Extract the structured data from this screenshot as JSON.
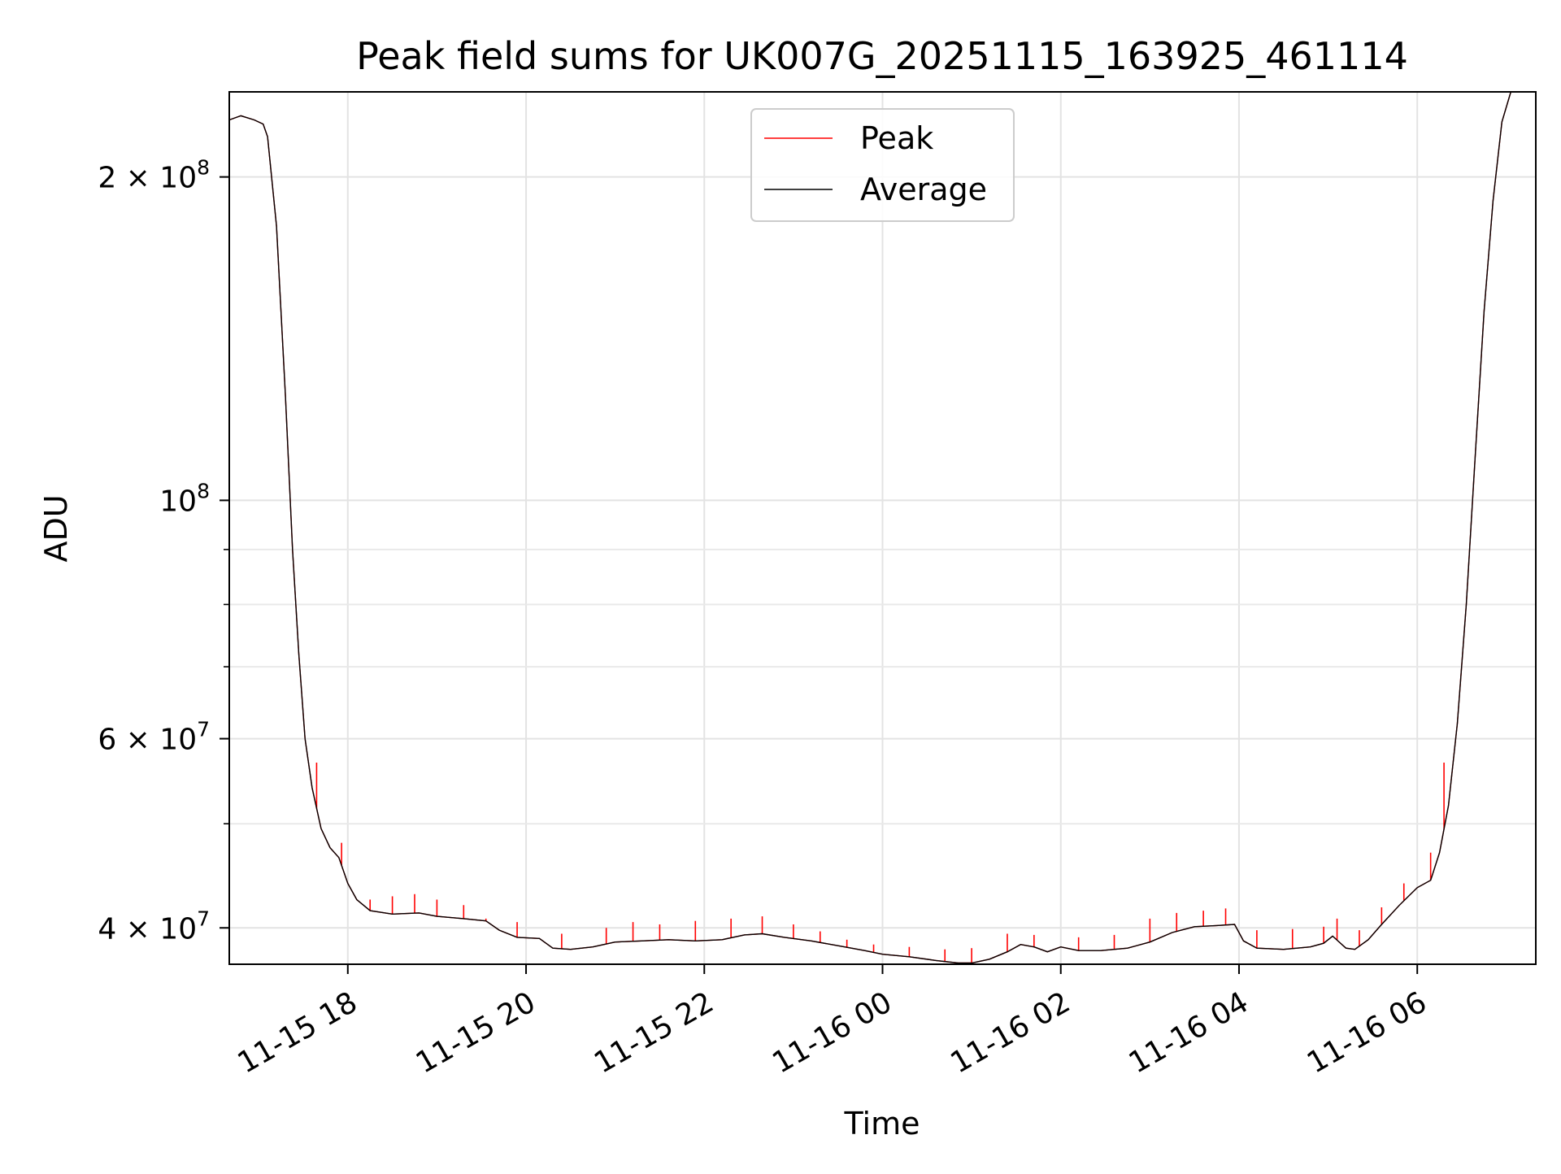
{
  "chart_data": {
    "type": "line",
    "title": "Peak field sums for UK007G_20251115_163925_461114",
    "xlabel": "Time",
    "ylabel": "ADU",
    "yscale": "log",
    "ylim": [
      37000000,
      240000000
    ],
    "xlim_hours": [
      16.67,
      31.33
    ],
    "grid": true,
    "legend_position": "upper-center",
    "x_ticks": [
      {
        "hour": 18,
        "label": "11-15 18"
      },
      {
        "hour": 20,
        "label": "11-15 20"
      },
      {
        "hour": 22,
        "label": "11-15 22"
      },
      {
        "hour": 24,
        "label": "11-16 00"
      },
      {
        "hour": 26,
        "label": "11-16 02"
      },
      {
        "hour": 28,
        "label": "11-16 04"
      },
      {
        "hour": 30,
        "label": "11-16 06"
      }
    ],
    "y_ticks_major": [
      {
        "value": 40000000,
        "base": "4 × 10",
        "exp": "7"
      },
      {
        "value": 60000000,
        "base": "6 × 10",
        "exp": "7"
      },
      {
        "value": 100000000,
        "base": "10",
        "exp": "8"
      },
      {
        "value": 200000000,
        "base": "2 × 10",
        "exp": "8"
      }
    ],
    "y_ticks_minor": [
      50000000,
      70000000,
      80000000,
      90000000
    ],
    "series": [
      {
        "name": "Peak",
        "color": "#ff0000",
        "spikes": [
          {
            "hour": 17.65,
            "value": 57000000
          },
          {
            "hour": 17.93,
            "value": 48000000
          },
          {
            "hour": 18.25,
            "value": 42500000
          },
          {
            "hour": 18.5,
            "value": 42800000
          },
          {
            "hour": 18.75,
            "value": 43000000
          },
          {
            "hour": 19.0,
            "value": 42500000
          },
          {
            "hour": 19.3,
            "value": 42000000
          },
          {
            "hour": 19.55,
            "value": 40800000
          },
          {
            "hour": 19.9,
            "value": 40500000
          },
          {
            "hour": 20.4,
            "value": 39500000
          },
          {
            "hour": 20.9,
            "value": 40000000
          },
          {
            "hour": 21.2,
            "value": 40500000
          },
          {
            "hour": 21.5,
            "value": 40300000
          },
          {
            "hour": 21.9,
            "value": 40600000
          },
          {
            "hour": 22.3,
            "value": 40800000
          },
          {
            "hour": 22.65,
            "value": 41000000
          },
          {
            "hour": 23.0,
            "value": 40300000
          },
          {
            "hour": 23.3,
            "value": 39700000
          },
          {
            "hour": 23.6,
            "value": 39000000
          },
          {
            "hour": 23.9,
            "value": 38600000
          },
          {
            "hour": 24.3,
            "value": 38400000
          },
          {
            "hour": 24.7,
            "value": 38200000
          },
          {
            "hour": 25.0,
            "value": 38300000
          },
          {
            "hour": 25.4,
            "value": 39500000
          },
          {
            "hour": 25.7,
            "value": 39400000
          },
          {
            "hour": 26.2,
            "value": 39200000
          },
          {
            "hour": 26.6,
            "value": 39400000
          },
          {
            "hour": 27.0,
            "value": 40800000
          },
          {
            "hour": 27.3,
            "value": 41300000
          },
          {
            "hour": 27.6,
            "value": 41500000
          },
          {
            "hour": 27.85,
            "value": 41700000
          },
          {
            "hour": 28.2,
            "value": 39800000
          },
          {
            "hour": 28.6,
            "value": 39900000
          },
          {
            "hour": 28.95,
            "value": 40100000
          },
          {
            "hour": 29.1,
            "value": 40800000
          },
          {
            "hour": 29.35,
            "value": 39800000
          },
          {
            "hour": 29.6,
            "value": 41800000
          },
          {
            "hour": 29.85,
            "value": 44000000
          },
          {
            "hour": 30.15,
            "value": 47000000
          },
          {
            "hour": 30.3,
            "value": 57000000
          }
        ]
      },
      {
        "name": "Average",
        "color": "#000000",
        "points": [
          [
            16.67,
            226000000
          ],
          [
            16.8,
            228000000
          ],
          [
            16.95,
            226000000
          ],
          [
            17.05,
            224000000
          ],
          [
            17.1,
            218000000
          ],
          [
            17.2,
            180000000
          ],
          [
            17.3,
            125000000
          ],
          [
            17.38,
            90000000
          ],
          [
            17.45,
            72000000
          ],
          [
            17.52,
            60000000
          ],
          [
            17.6,
            54000000
          ],
          [
            17.7,
            49500000
          ],
          [
            17.8,
            47500000
          ],
          [
            17.9,
            46500000
          ],
          [
            18.0,
            44000000
          ],
          [
            18.1,
            42500000
          ],
          [
            18.25,
            41500000
          ],
          [
            18.5,
            41200000
          ],
          [
            18.8,
            41300000
          ],
          [
            19.0,
            41000000
          ],
          [
            19.3,
            40800000
          ],
          [
            19.55,
            40600000
          ],
          [
            19.7,
            39800000
          ],
          [
            19.9,
            39200000
          ],
          [
            20.15,
            39100000
          ],
          [
            20.3,
            38300000
          ],
          [
            20.5,
            38200000
          ],
          [
            20.75,
            38400000
          ],
          [
            21.0,
            38800000
          ],
          [
            21.3,
            38900000
          ],
          [
            21.6,
            39000000
          ],
          [
            21.9,
            38900000
          ],
          [
            22.2,
            39000000
          ],
          [
            22.45,
            39400000
          ],
          [
            22.65,
            39500000
          ],
          [
            22.9,
            39200000
          ],
          [
            23.2,
            38900000
          ],
          [
            23.5,
            38500000
          ],
          [
            23.8,
            38100000
          ],
          [
            24.0,
            37800000
          ],
          [
            24.3,
            37600000
          ],
          [
            24.6,
            37300000
          ],
          [
            24.85,
            37100000
          ],
          [
            25.0,
            37100000
          ],
          [
            25.2,
            37400000
          ],
          [
            25.4,
            38000000
          ],
          [
            25.55,
            38600000
          ],
          [
            25.7,
            38400000
          ],
          [
            25.85,
            38000000
          ],
          [
            26.0,
            38400000
          ],
          [
            26.2,
            38100000
          ],
          [
            26.45,
            38100000
          ],
          [
            26.75,
            38300000
          ],
          [
            27.0,
            38800000
          ],
          [
            27.25,
            39600000
          ],
          [
            27.5,
            40100000
          ],
          [
            27.75,
            40200000
          ],
          [
            27.95,
            40300000
          ],
          [
            28.05,
            38900000
          ],
          [
            28.2,
            38300000
          ],
          [
            28.5,
            38200000
          ],
          [
            28.8,
            38400000
          ],
          [
            28.95,
            38700000
          ],
          [
            29.05,
            39300000
          ],
          [
            29.2,
            38300000
          ],
          [
            29.3,
            38200000
          ],
          [
            29.45,
            39000000
          ],
          [
            29.6,
            40300000
          ],
          [
            29.8,
            42000000
          ],
          [
            30.0,
            43600000
          ],
          [
            30.15,
            44300000
          ],
          [
            30.25,
            47000000
          ],
          [
            30.35,
            52000000
          ],
          [
            30.45,
            62000000
          ],
          [
            30.55,
            80000000
          ],
          [
            30.65,
            110000000
          ],
          [
            30.75,
            150000000
          ],
          [
            30.85,
            190000000
          ],
          [
            30.95,
            225000000
          ],
          [
            31.05,
            242000000
          ]
        ]
      }
    ]
  }
}
